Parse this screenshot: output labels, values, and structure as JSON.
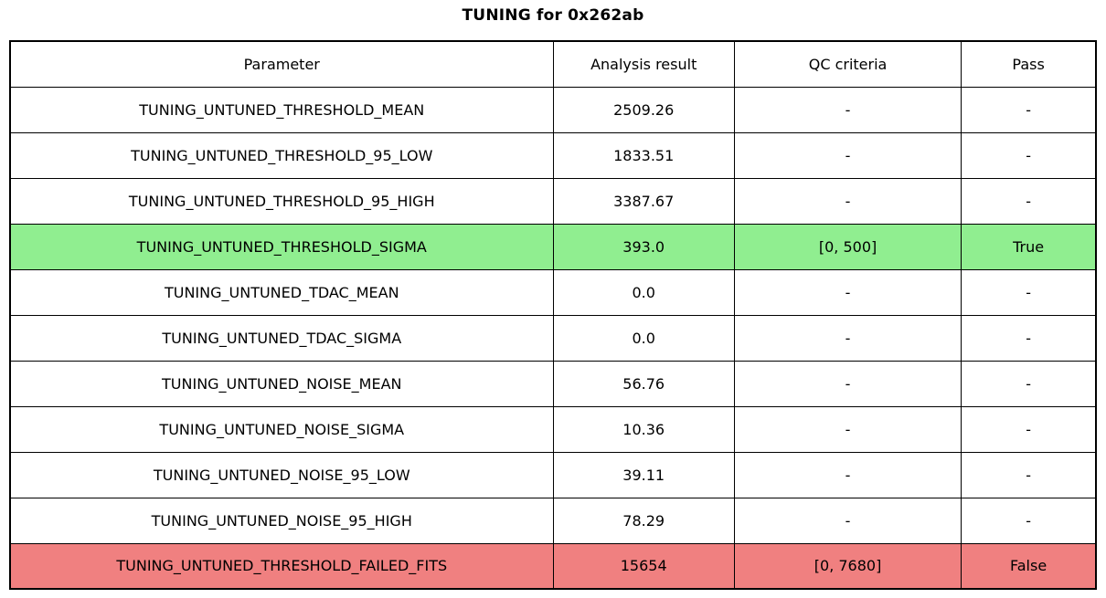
{
  "title": "TUNING for 0x262ab",
  "colors": {
    "pass_green": "#90EE90",
    "fail_red": "#F08080",
    "grid_line": "#000000",
    "background": "#FFFFFF"
  },
  "table": {
    "columns": [
      "Parameter",
      "Analysis result",
      "QC criteria",
      "Pass"
    ],
    "rows": [
      {
        "parameter": "TUNING_UNTUNED_THRESHOLD_MEAN",
        "result": "2509.26",
        "qc": "-",
        "pass": "-",
        "highlight": "none"
      },
      {
        "parameter": "TUNING_UNTUNED_THRESHOLD_95_LOW",
        "result": "1833.51",
        "qc": "-",
        "pass": "-",
        "highlight": "none"
      },
      {
        "parameter": "TUNING_UNTUNED_THRESHOLD_95_HIGH",
        "result": "3387.67",
        "qc": "-",
        "pass": "-",
        "highlight": "none"
      },
      {
        "parameter": "TUNING_UNTUNED_THRESHOLD_SIGMA",
        "result": "393.0",
        "qc": "[0, 500]",
        "pass": "True",
        "highlight": "pass"
      },
      {
        "parameter": "TUNING_UNTUNED_TDAC_MEAN",
        "result": "0.0",
        "qc": "-",
        "pass": "-",
        "highlight": "none"
      },
      {
        "parameter": "TUNING_UNTUNED_TDAC_SIGMA",
        "result": "0.0",
        "qc": "-",
        "pass": "-",
        "highlight": "none"
      },
      {
        "parameter": "TUNING_UNTUNED_NOISE_MEAN",
        "result": "56.76",
        "qc": "-",
        "pass": "-",
        "highlight": "none"
      },
      {
        "parameter": "TUNING_UNTUNED_NOISE_SIGMA",
        "result": "10.36",
        "qc": "-",
        "pass": "-",
        "highlight": "none"
      },
      {
        "parameter": "TUNING_UNTUNED_NOISE_95_LOW",
        "result": "39.11",
        "qc": "-",
        "pass": "-",
        "highlight": "none"
      },
      {
        "parameter": "TUNING_UNTUNED_NOISE_95_HIGH",
        "result": "78.29",
        "qc": "-",
        "pass": "-",
        "highlight": "none"
      },
      {
        "parameter": "TUNING_UNTUNED_THRESHOLD_FAILED_FITS",
        "result": "15654",
        "qc": "[0, 7680]",
        "pass": "False",
        "highlight": "fail"
      }
    ]
  },
  "chart_data": {
    "type": "table",
    "title": "TUNING for 0x262ab",
    "columns": [
      "Parameter",
      "Analysis result",
      "QC criteria",
      "Pass"
    ],
    "rows": [
      [
        "TUNING_UNTUNED_THRESHOLD_MEAN",
        "2509.26",
        "-",
        "-"
      ],
      [
        "TUNING_UNTUNED_THRESHOLD_95_LOW",
        "1833.51",
        "-",
        "-"
      ],
      [
        "TUNING_UNTUNED_THRESHOLD_95_HIGH",
        "3387.67",
        "-",
        "-"
      ],
      [
        "TUNING_UNTUNED_THRESHOLD_SIGMA",
        "393.0",
        "[0, 500]",
        "True"
      ],
      [
        "TUNING_UNTUNED_TDAC_MEAN",
        "0.0",
        "-",
        "-"
      ],
      [
        "TUNING_UNTUNED_TDAC_SIGMA",
        "0.0",
        "-",
        "-"
      ],
      [
        "TUNING_UNTUNED_NOISE_MEAN",
        "56.76",
        "-",
        "-"
      ],
      [
        "TUNING_UNTUNED_NOISE_SIGMA",
        "10.36",
        "-",
        "-"
      ],
      [
        "TUNING_UNTUNED_NOISE_95_LOW",
        "39.11",
        "-",
        "-"
      ],
      [
        "TUNING_UNTUNED_NOISE_95_HIGH",
        "78.29",
        "-",
        "-"
      ],
      [
        "TUNING_UNTUNED_THRESHOLD_FAILED_FITS",
        "15654",
        "[0, 7680]",
        "False"
      ]
    ],
    "row_highlights": [
      "none",
      "none",
      "none",
      "pass",
      "none",
      "none",
      "none",
      "none",
      "none",
      "none",
      "fail"
    ],
    "layout": {
      "grid": true,
      "header_row": true,
      "highlight_pass_color": "#90EE90",
      "highlight_fail_color": "#F08080"
    }
  }
}
